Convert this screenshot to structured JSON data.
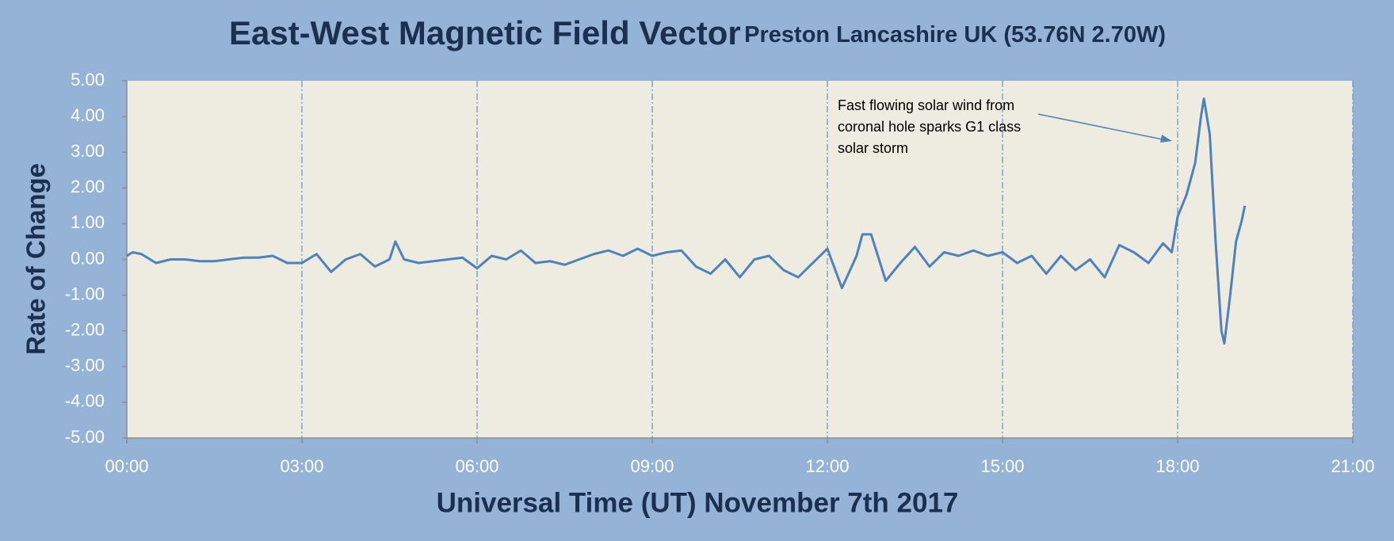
{
  "chart_data": {
    "type": "line",
    "title": "East-West Magnetic Field Vector",
    "subtitle": "Preston Lancashire UK (53.76N 2.70W)",
    "x_label": "Universal Time (UT) November 7th 2017",
    "y_label": "Rate of Change",
    "annotation": [
      "Fast flowing solar wind from",
      "coronal hole sparks G1 class",
      "solar storm"
    ],
    "xlim": [
      0,
      21
    ],
    "xticks": [
      {
        "value": 0,
        "label": "00:00"
      },
      {
        "value": 3,
        "label": "03:00"
      },
      {
        "value": 6,
        "label": "06:00"
      },
      {
        "value": 9,
        "label": "09:00"
      },
      {
        "value": 12,
        "label": "12:00"
      },
      {
        "value": 15,
        "label": "15:00"
      },
      {
        "value": 18,
        "label": "18:00"
      },
      {
        "value": 21,
        "label": "21:00"
      }
    ],
    "ylim": [
      -5,
      5
    ],
    "yticks": [
      {
        "value": 5,
        "label": "5.00"
      },
      {
        "value": 4,
        "label": "4.00"
      },
      {
        "value": 3,
        "label": "3.00"
      },
      {
        "value": 2,
        "label": "2.00"
      },
      {
        "value": 1,
        "label": "1.00"
      },
      {
        "value": 0,
        "label": "0.00"
      },
      {
        "value": -1,
        "label": "-1.00"
      },
      {
        "value": -2,
        "label": "-2.00"
      },
      {
        "value": -3,
        "label": "-3.00"
      },
      {
        "value": -4,
        "label": "-4.00"
      },
      {
        "value": -5,
        "label": "-5.00"
      }
    ],
    "grid": true,
    "x": [
      0,
      0.1,
      0.25,
      0.5,
      0.75,
      1,
      1.25,
      1.5,
      1.75,
      2,
      2.25,
      2.5,
      2.75,
      3,
      3.25,
      3.5,
      3.75,
      4,
      4.25,
      4.5,
      4.6,
      4.75,
      5,
      5.25,
      5.5,
      5.75,
      6,
      6.25,
      6.5,
      6.75,
      7,
      7.25,
      7.5,
      7.75,
      8,
      8.25,
      8.5,
      8.75,
      9,
      9.25,
      9.5,
      9.75,
      10,
      10.25,
      10.5,
      10.75,
      11,
      11.25,
      11.5,
      11.75,
      12,
      12.25,
      12.5,
      12.6,
      12.75,
      13,
      13.25,
      13.5,
      13.75,
      14,
      14.25,
      14.5,
      14.75,
      15,
      15.25,
      15.5,
      15.75,
      16,
      16.25,
      16.5,
      16.75,
      17,
      17.25,
      17.5,
      17.75,
      17.9,
      18,
      18.15,
      18.3,
      18.4,
      18.45,
      18.55,
      18.65,
      18.75,
      18.8,
      18.9,
      19,
      19.1,
      19.15
    ],
    "series": [
      {
        "name": "East-West",
        "color": "#4f81bd",
        "values": [
          0.1,
          0.2,
          0.15,
          -0.1,
          0,
          0,
          -0.05,
          -0.05,
          0,
          0.05,
          0.05,
          0.1,
          -0.1,
          -0.1,
          0.15,
          -0.35,
          0,
          0.15,
          -0.2,
          0,
          0.5,
          0,
          -0.1,
          -0.05,
          0,
          0.05,
          -0.25,
          0.1,
          0,
          0.25,
          -0.1,
          -0.05,
          -0.15,
          0,
          0.15,
          0.25,
          0.1,
          0.3,
          0.1,
          0.2,
          0.25,
          -0.2,
          -0.4,
          0,
          -0.5,
          0,
          0.1,
          -0.3,
          -0.5,
          -0.1,
          0.3,
          -0.8,
          0.1,
          0.7,
          0.7,
          -0.6,
          -0.1,
          0.35,
          -0.2,
          0.2,
          0.1,
          0.25,
          0.1,
          0.2,
          -0.1,
          0.1,
          -0.4,
          0.1,
          -0.3,
          0,
          -0.5,
          0.4,
          0.2,
          -0.1,
          0.45,
          0.2,
          1.2,
          1.8,
          2.7,
          4,
          4.5,
          3.5,
          0.5,
          -2,
          -2.35,
          -1,
          0.5,
          1.1,
          1.5
        ]
      }
    ]
  }
}
